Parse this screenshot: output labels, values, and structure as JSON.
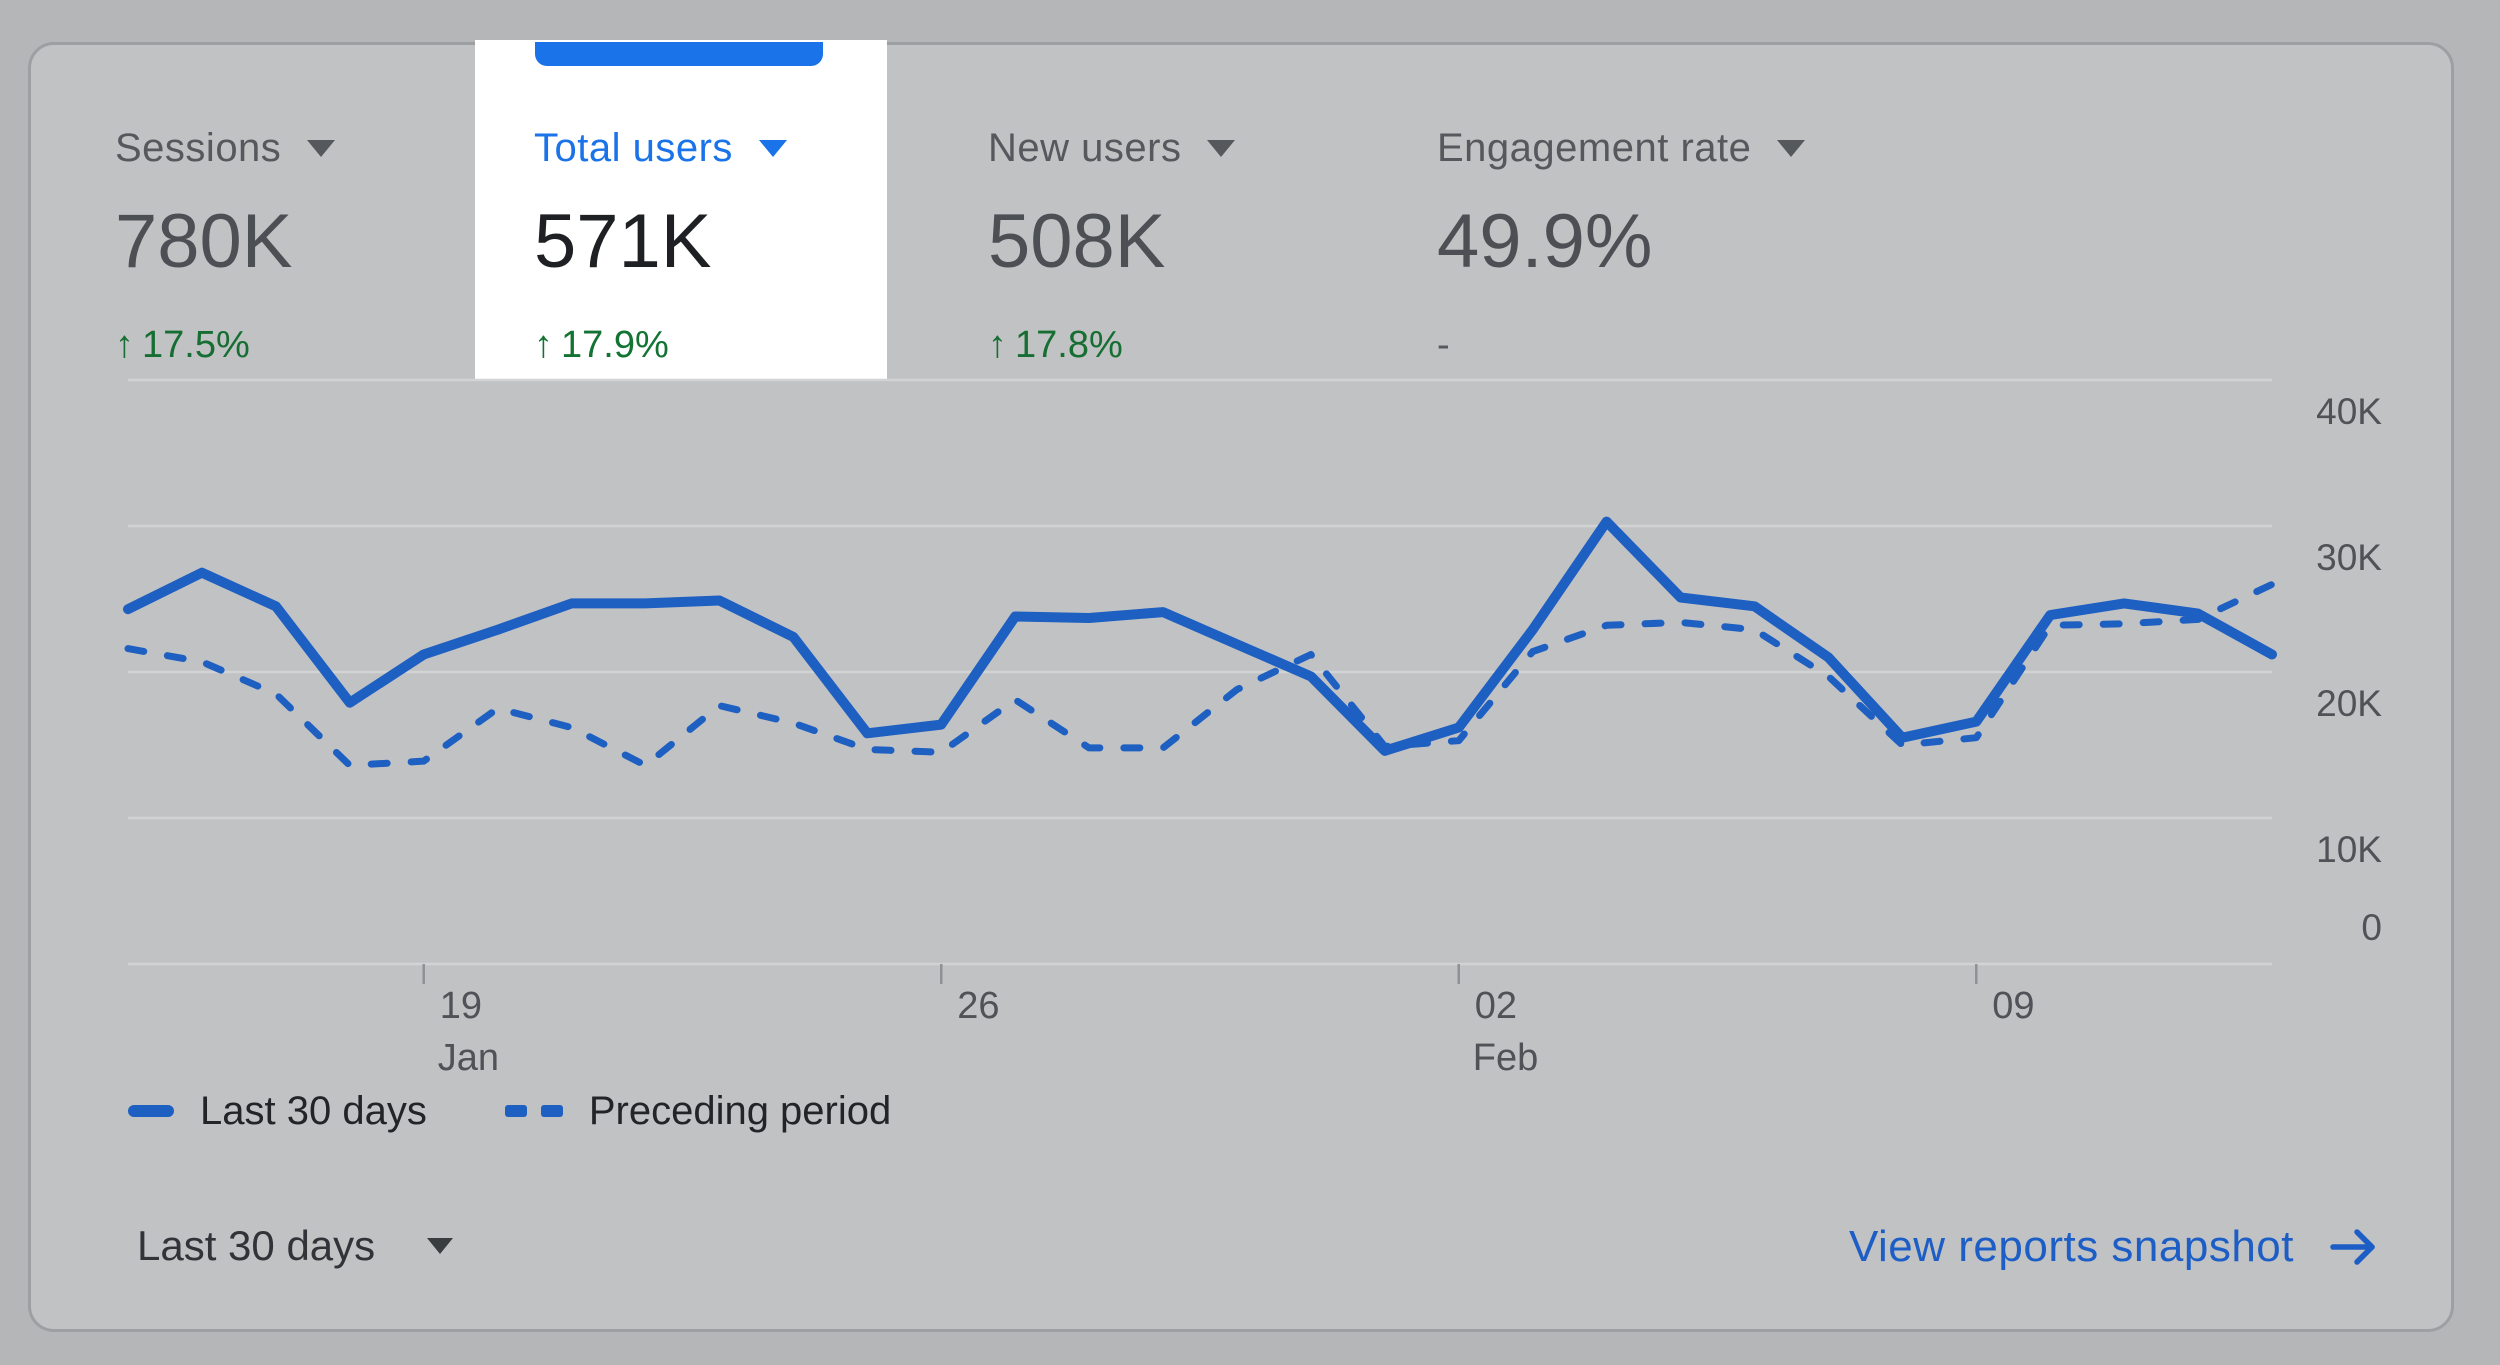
{
  "metrics": [
    {
      "label": "Sessions",
      "value": "780K",
      "change": "17.5%",
      "direction": "up",
      "selected": false
    },
    {
      "label": "Total users",
      "value": "571K",
      "change": "17.9%",
      "direction": "up",
      "selected": true
    },
    {
      "label": "New users",
      "value": "508K",
      "change": "17.8%",
      "direction": "up",
      "selected": false
    },
    {
      "label": "Engagement rate",
      "value": "49.9%",
      "change": "-",
      "direction": "none",
      "selected": false
    }
  ],
  "icons": {
    "up_arrow": "↑",
    "dropdown_caret": "caret-down-triangle",
    "right_arrow": "arrow-right"
  },
  "legend": [
    {
      "label": "Last 30 days",
      "style": "solid"
    },
    {
      "label": "Preceding period",
      "style": "dashed"
    }
  ],
  "footer": {
    "date_range": "Last 30 days",
    "link_label": "View reports snapshot"
  },
  "colors": {
    "page_bg": "#b4b6b8",
    "card_bg": "#c1c2c4",
    "card_border": "#9da0a3",
    "highlight_bg": "#ffffff",
    "accent_blue": "#1a73e8",
    "line_blue": "#1e5fc2",
    "link_blue": "#1c5ec5",
    "value_dark": "#1f2023",
    "text_gray": "#55585c",
    "axis_text": "#4f5256",
    "green_selected": "#137333",
    "green_dim": "#166e32",
    "gridline": "#d2d3d5",
    "tick": "#8f9194"
  },
  "chart_data": {
    "type": "line",
    "title": "Total users per day",
    "values_unit": "thousands of users",
    "y_ticks": [
      "40K",
      "30K",
      "20K",
      "10K",
      "0"
    ],
    "y_max_k": 40,
    "x_tick_labels": [
      {
        "index": 4,
        "day": "19",
        "month": "Jan"
      },
      {
        "index": 11,
        "day": "26",
        "month": ""
      },
      {
        "index": 18,
        "day": "02",
        "month": "Feb"
      },
      {
        "index": 25,
        "day": "09",
        "month": ""
      }
    ],
    "grid": "horizontal",
    "legend_position": "bottom-left",
    "series": [
      {
        "name": "Last 30 days",
        "style": "solid",
        "values_k": [
          24.3,
          26.8,
          24.5,
          17.9,
          21.2,
          22.9,
          24.7,
          24.7,
          24.9,
          22.4,
          15.8,
          16.4,
          23.8,
          23.7,
          24.1,
          21.9,
          19.7,
          14.6,
          16.2,
          22.9,
          30.3,
          25.1,
          24.5,
          21.0,
          15.5,
          16.6,
          23.9,
          24.7,
          24.0,
          21.2
        ]
      },
      {
        "name": "Preceding period",
        "style": "dashed",
        "values_k": [
          21.6,
          20.7,
          18.5,
          13.6,
          13.9,
          17.5,
          16.2,
          13.6,
          17.7,
          16.5,
          14.7,
          14.5,
          18.1,
          14.8,
          14.8,
          18.8,
          21.2,
          14.9,
          15.3,
          21.4,
          23.2,
          23.4,
          22.9,
          19.7,
          15.0,
          15.5,
          23.2,
          23.3,
          23.6,
          26.0
        ]
      }
    ]
  }
}
